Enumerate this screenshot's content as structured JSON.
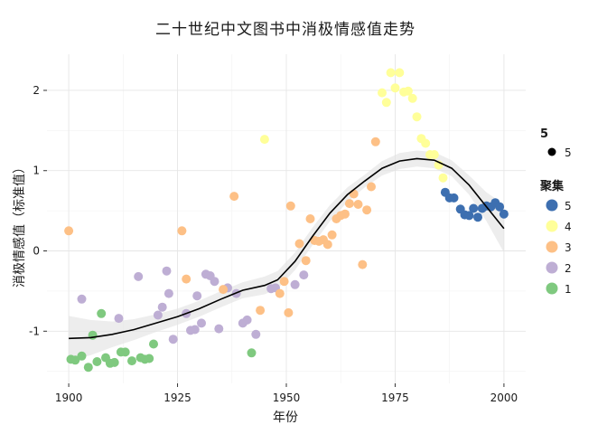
{
  "chart_data": {
    "type": "scatter",
    "title": "二十世纪中文图书中消极情感值走势",
    "xlabel": "年份",
    "ylabel": "消极情感值（标准值）",
    "xlim": [
      1895,
      2005
    ],
    "ylim": [
      -1.65,
      2.45
    ],
    "x_ticks": [
      1900,
      1925,
      1950,
      1975,
      2000
    ],
    "y_ticks": [
      -1,
      0,
      1,
      2
    ],
    "grid": true,
    "legend_position": "right",
    "cluster_colors": {
      "5": "#3d6fb0",
      "4": "#ffff99",
      "3": "#fdc086",
      "2": "#beaed4",
      "1": "#7fc97f"
    },
    "legend": {
      "size_title": "5",
      "size_entries": [
        {
          "label": "5"
        }
      ],
      "cluster_title": "聚集",
      "cluster_entries": [
        {
          "label": "5",
          "cluster": "5"
        },
        {
          "label": "4",
          "cluster": "4"
        },
        {
          "label": "3",
          "cluster": "3"
        },
        {
          "label": "2",
          "cluster": "2"
        },
        {
          "label": "1",
          "cluster": "1"
        }
      ]
    },
    "smooth": {
      "x": [
        1900,
        1905,
        1910,
        1915,
        1920,
        1925,
        1930,
        1935,
        1940,
        1945,
        1948,
        1952,
        1956,
        1960,
        1964,
        1968,
        1972,
        1976,
        1980,
        1984,
        1988,
        1992,
        1996,
        2000
      ],
      "y": [
        -1.09,
        -1.08,
        -1.04,
        -0.98,
        -0.9,
        -0.82,
        -0.72,
        -0.6,
        -0.49,
        -0.43,
        -0.36,
        -0.13,
        0.18,
        0.47,
        0.7,
        0.87,
        1.03,
        1.12,
        1.15,
        1.13,
        1.03,
        0.82,
        0.55,
        0.28
      ],
      "band": [
        0.28,
        0.22,
        0.16,
        0.13,
        0.11,
        0.1,
        0.1,
        0.1,
        0.1,
        0.11,
        0.11,
        0.11,
        0.11,
        0.1,
        0.09,
        0.08,
        0.09,
        0.1,
        0.1,
        0.1,
        0.1,
        0.12,
        0.18,
        0.3
      ]
    },
    "series": [
      {
        "cluster": "1",
        "points": [
          [
            1900.5,
            -1.35
          ],
          [
            1901.5,
            -1.36
          ],
          [
            1903,
            -1.31
          ],
          [
            1904.5,
            -1.45
          ],
          [
            1905.5,
            -1.05
          ],
          [
            1906.5,
            -1.38
          ],
          [
            1907.5,
            -0.78
          ],
          [
            1908.5,
            -1.33
          ],
          [
            1909.5,
            -1.4
          ],
          [
            1910.5,
            -1.39
          ],
          [
            1912,
            -1.26
          ],
          [
            1913,
            -1.26
          ],
          [
            1914.5,
            -1.37
          ],
          [
            1916.5,
            -1.33
          ],
          [
            1917.5,
            -1.35
          ],
          [
            1918.5,
            -1.34
          ],
          [
            1919.5,
            -1.16
          ],
          [
            1942,
            -1.27
          ]
        ]
      },
      {
        "cluster": "2",
        "points": [
          [
            1903,
            -0.6
          ],
          [
            1911.5,
            -0.84
          ],
          [
            1916,
            -0.32
          ],
          [
            1920.5,
            -0.8
          ],
          [
            1921.5,
            -0.7
          ],
          [
            1922.5,
            -0.25
          ],
          [
            1923,
            -0.53
          ],
          [
            1924,
            -1.1
          ],
          [
            1927,
            -0.78
          ],
          [
            1928,
            -0.99
          ],
          [
            1929,
            -0.98
          ],
          [
            1929.5,
            -0.56
          ],
          [
            1930.5,
            -0.9
          ],
          [
            1931.5,
            -0.29
          ],
          [
            1932.5,
            -0.31
          ],
          [
            1933.5,
            -0.38
          ],
          [
            1934.5,
            -0.97
          ],
          [
            1936.5,
            -0.46
          ],
          [
            1938.5,
            -0.53
          ],
          [
            1940,
            -0.9
          ],
          [
            1941,
            -0.86
          ],
          [
            1943,
            -1.04
          ],
          [
            1946.5,
            -0.47
          ],
          [
            1947.5,
            -0.46
          ],
          [
            1952,
            -0.42
          ],
          [
            1954,
            -0.3
          ]
        ]
      },
      {
        "cluster": "3",
        "points": [
          [
            1900,
            0.25
          ],
          [
            1926,
            0.25
          ],
          [
            1927,
            -0.35
          ],
          [
            1935.5,
            -0.48
          ],
          [
            1938,
            0.68
          ],
          [
            1944,
            -0.74
          ],
          [
            1948.5,
            -0.53
          ],
          [
            1949.5,
            -0.38
          ],
          [
            1950.5,
            -0.77
          ],
          [
            1951,
            0.56
          ],
          [
            1953,
            0.09
          ],
          [
            1954.5,
            -0.12
          ],
          [
            1955.5,
            0.4
          ],
          [
            1956.5,
            0.13
          ],
          [
            1957.5,
            0.12
          ],
          [
            1958.5,
            0.14
          ],
          [
            1959.5,
            0.08
          ],
          [
            1960.5,
            0.2
          ],
          [
            1961.5,
            0.4
          ],
          [
            1962.5,
            0.44
          ],
          [
            1963.5,
            0.46
          ],
          [
            1964.5,
            0.59
          ],
          [
            1965.5,
            0.71
          ],
          [
            1966.5,
            0.58
          ],
          [
            1967.5,
            -0.17
          ],
          [
            1968.5,
            0.51
          ],
          [
            1969.5,
            0.8
          ],
          [
            1970.5,
            1.36
          ]
        ]
      },
      {
        "cluster": "4",
        "points": [
          [
            1945,
            1.39
          ],
          [
            1972,
            1.97
          ],
          [
            1973,
            1.85
          ],
          [
            1974,
            2.22
          ],
          [
            1975,
            2.03
          ],
          [
            1976,
            2.22
          ],
          [
            1977,
            1.98
          ],
          [
            1978,
            1.99
          ],
          [
            1979,
            1.9
          ],
          [
            1980,
            1.67
          ],
          [
            1981,
            1.4
          ],
          [
            1982,
            1.34
          ],
          [
            1983,
            1.2
          ],
          [
            1984,
            1.2
          ],
          [
            1985,
            1.07
          ],
          [
            1986,
            0.91
          ]
        ]
      },
      {
        "cluster": "5",
        "points": [
          [
            1986.5,
            0.73
          ],
          [
            1987.5,
            0.66
          ],
          [
            1988.5,
            0.66
          ],
          [
            1990,
            0.52
          ],
          [
            1991,
            0.45
          ],
          [
            1992,
            0.44
          ],
          [
            1993,
            0.53
          ],
          [
            1994,
            0.42
          ],
          [
            1995,
            0.53
          ],
          [
            1996,
            0.56
          ],
          [
            1997,
            0.55
          ],
          [
            1998,
            0.6
          ],
          [
            1999,
            0.55
          ],
          [
            2000,
            0.46
          ]
        ]
      }
    ]
  }
}
